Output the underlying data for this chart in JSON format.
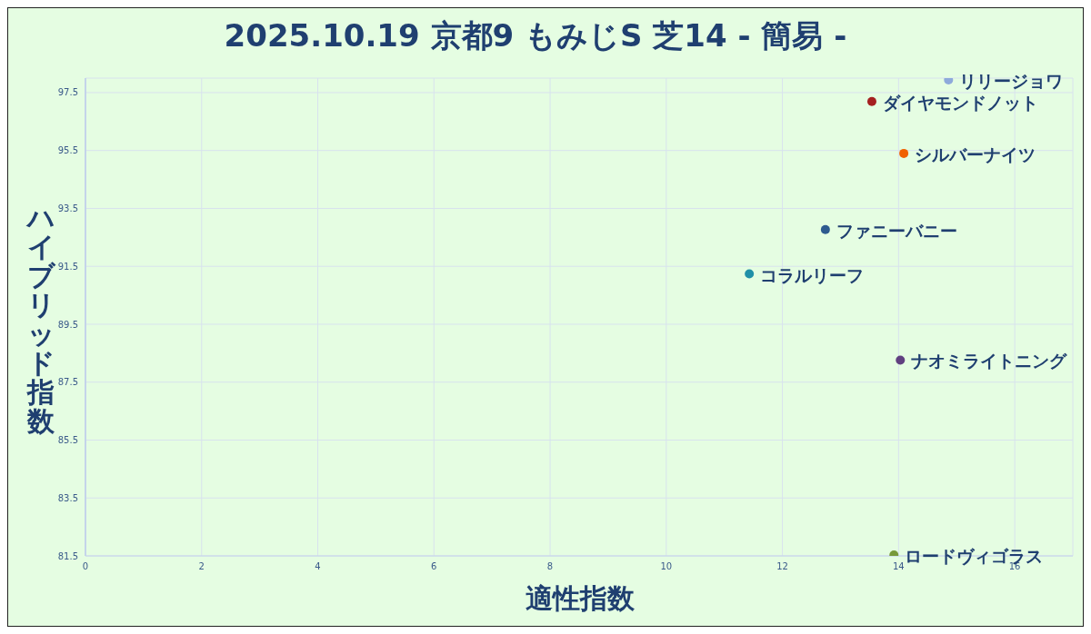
{
  "chart_data": {
    "type": "scatter",
    "title": "2025.10.19 京都9 もみじS 芝14 - 簡易 -",
    "xlabel": "適性指数",
    "ylabel": "ハイブリッド指数",
    "xlim": [
      0,
      17
    ],
    "xticks": [
      0,
      2,
      4,
      6,
      8,
      10,
      12,
      14,
      16
    ],
    "ylim": [
      81.5,
      98
    ],
    "yticks": [
      81.5,
      83.5,
      85.5,
      87.5,
      89.5,
      91.5,
      93.5,
      95.5,
      97.5
    ],
    "grid": true,
    "marker": "circle",
    "legend": false,
    "series": [
      {
        "name": "リリージョワ",
        "color": "#8eaadb",
        "x": [
          14.86
        ],
        "values": [
          97.94
        ]
      },
      {
        "name": "ダイヤモンドノット",
        "color": "#a52020",
        "x": [
          13.54
        ],
        "values": [
          97.19
        ]
      },
      {
        "name": "シルバーナイツ",
        "color": "#f06000",
        "x": [
          14.09
        ],
        "values": [
          95.4
        ]
      },
      {
        "name": "ファニーバニー",
        "color": "#2e5b8f",
        "x": [
          12.74
        ],
        "values": [
          92.77
        ]
      },
      {
        "name": "コラルリーフ",
        "color": "#2090a8",
        "x": [
          11.43
        ],
        "values": [
          91.24
        ]
      },
      {
        "name": "ナオミライトニング",
        "color": "#604080",
        "x": [
          14.03
        ],
        "values": [
          88.26
        ]
      },
      {
        "name": "ロードヴィゴラス",
        "color": "#77993a",
        "x": [
          13.92
        ],
        "values": [
          81.53
        ]
      }
    ]
  }
}
